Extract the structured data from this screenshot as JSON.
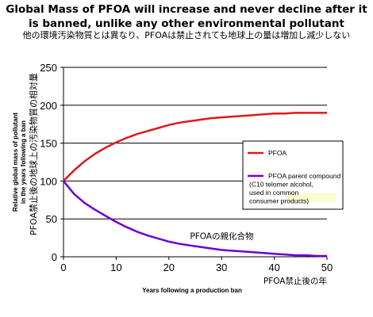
{
  "title": "Global Mass of PFOA will increase and never decline after it is banned, unlike any other environmental pollutant",
  "subtitle": "他の環境汚染物質とは異なり、PFOAは禁止されても地球上の量は増加し減少しない",
  "colors": {
    "pfoa": "#dd1a1a",
    "parent": "#6a00d8",
    "axis": "#000000",
    "grid": "#000000",
    "highlight": "#fffbd0"
  },
  "chart_data": {
    "type": "line",
    "xlabel": "Years following a production ban",
    "xlabel_ja": "PFOA禁止後の年",
    "ylabel": "Relative global mass of pollutant in the years following a ban",
    "ylabel_ja": "PFOA禁止後の地球上の汚染物質の相対量",
    "xlim": [
      0,
      50
    ],
    "ylim": [
      0,
      250
    ],
    "xticks": [
      0,
      10,
      20,
      30,
      40,
      50
    ],
    "yticks": [
      0,
      50,
      100,
      150,
      200,
      250
    ],
    "grid": "horizontal",
    "legend_position": "right",
    "series": [
      {
        "name": "PFOA",
        "x": [
          0,
          2,
          4,
          6,
          8,
          10,
          12,
          14,
          16,
          18,
          20,
          22,
          24,
          26,
          28,
          30,
          32,
          34,
          36,
          38,
          40,
          42,
          44,
          46,
          48,
          50
        ],
        "values": [
          100,
          114,
          126,
          136,
          144,
          151,
          157,
          162,
          166,
          170,
          174,
          177,
          179,
          181,
          183,
          184,
          185,
          186,
          187,
          188,
          189,
          189,
          190,
          190,
          190,
          190
        ]
      },
      {
        "name": "PFOA parent compound (C10 telomer alcohol, used in common consumer products)",
        "x": [
          0,
          2,
          4,
          6,
          8,
          10,
          12,
          14,
          16,
          18,
          20,
          22,
          24,
          26,
          28,
          30,
          32,
          34,
          36,
          38,
          40,
          42,
          44,
          46,
          48,
          50
        ],
        "values": [
          100,
          83,
          71,
          62,
          54,
          46,
          39,
          33,
          28,
          24,
          20,
          17,
          15,
          13,
          11,
          9,
          8,
          7,
          6,
          5,
          4,
          3,
          2,
          2,
          1,
          1
        ]
      }
    ],
    "annotation_ja": "PFOAの親化合物"
  }
}
